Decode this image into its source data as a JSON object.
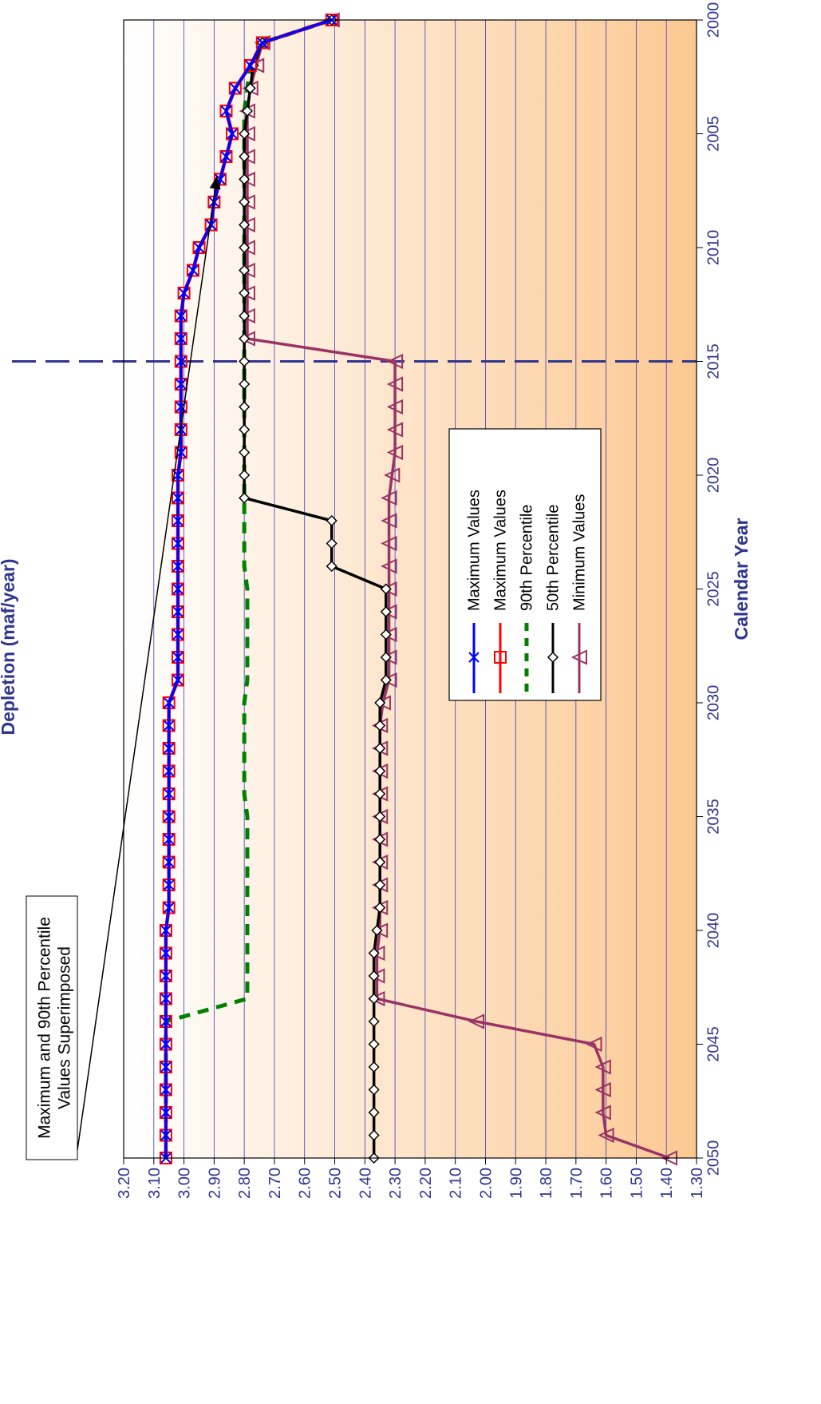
{
  "chart_data": {
    "type": "line",
    "orientation": "rotated-90-clockwise",
    "xlabel": "Calendar Year",
    "ylabel": "Depletion (maf/year)",
    "xlim": [
      2000,
      2050
    ],
    "ylim": [
      1.3,
      3.2
    ],
    "x_ticks": [
      2000,
      2005,
      2010,
      2015,
      2020,
      2025,
      2030,
      2035,
      2040,
      2045,
      2050
    ],
    "y_ticks": [
      1.3,
      1.4,
      1.5,
      1.6,
      1.7,
      1.8,
      1.9,
      2.0,
      2.1,
      2.2,
      2.3,
      2.4,
      2.5,
      2.6,
      2.7,
      2.8,
      2.9,
      3.0,
      3.1,
      3.2
    ],
    "grid": true,
    "legend_placement": "center",
    "reference_line": {
      "x": 2015,
      "style": "dashed",
      "color": "#2f3590"
    },
    "annotation": {
      "line1": "Maximum and 90th Percentile",
      "line2": "Values Superimposed",
      "points_to": {
        "x": 2007,
        "y": 2.88
      }
    },
    "series": [
      {
        "name": "Maximum Values",
        "color": "#0000ff",
        "marker": "x",
        "line": "solid",
        "x": [
          2000,
          2001,
          2002,
          2003,
          2004,
          2005,
          2006,
          2007,
          2008,
          2009,
          2010,
          2011,
          2012,
          2013,
          2014,
          2015,
          2016,
          2017,
          2018,
          2019,
          2020,
          2021,
          2022,
          2023,
          2024,
          2025,
          2026,
          2027,
          2028,
          2029,
          2030,
          2031,
          2032,
          2033,
          2034,
          2035,
          2036,
          2037,
          2038,
          2039,
          2040,
          2041,
          2042,
          2043,
          2044,
          2045,
          2046,
          2047,
          2048,
          2049,
          2050
        ],
        "y": [
          2.51,
          2.74,
          2.78,
          2.83,
          2.86,
          2.84,
          2.86,
          2.88,
          2.9,
          2.91,
          2.95,
          2.97,
          3.0,
          3.01,
          3.01,
          3.01,
          3.01,
          3.01,
          3.01,
          3.01,
          3.02,
          3.02,
          3.02,
          3.02,
          3.02,
          3.02,
          3.02,
          3.02,
          3.02,
          3.02,
          3.05,
          3.05,
          3.05,
          3.05,
          3.05,
          3.05,
          3.05,
          3.05,
          3.05,
          3.05,
          3.06,
          3.06,
          3.06,
          3.06,
          3.06,
          3.06,
          3.06,
          3.06,
          3.06,
          3.06,
          3.06
        ]
      },
      {
        "name": "Maximum Values",
        "color": "#ff0000",
        "marker": "square",
        "line": "solid",
        "x": [
          2000,
          2001,
          2002,
          2003,
          2004,
          2005,
          2006,
          2007,
          2008,
          2009,
          2010,
          2011,
          2012,
          2013,
          2014,
          2015,
          2016,
          2017,
          2018,
          2019,
          2020,
          2021,
          2022,
          2023,
          2024,
          2025,
          2026,
          2027,
          2028,
          2029,
          2030,
          2031,
          2032,
          2033,
          2034,
          2035,
          2036,
          2037,
          2038,
          2039,
          2040,
          2041,
          2042,
          2043,
          2044,
          2045,
          2046,
          2047,
          2048,
          2049,
          2050
        ],
        "y": [
          2.51,
          2.74,
          2.78,
          2.83,
          2.86,
          2.84,
          2.86,
          2.88,
          2.9,
          2.91,
          2.95,
          2.97,
          3.0,
          3.01,
          3.01,
          3.01,
          3.01,
          3.01,
          3.01,
          3.01,
          3.02,
          3.02,
          3.02,
          3.02,
          3.02,
          3.02,
          3.02,
          3.02,
          3.02,
          3.02,
          3.05,
          3.05,
          3.05,
          3.05,
          3.05,
          3.05,
          3.05,
          3.05,
          3.05,
          3.05,
          3.06,
          3.06,
          3.06,
          3.06,
          3.06,
          3.06,
          3.06,
          3.06,
          3.06,
          3.06,
          3.06
        ]
      },
      {
        "name": "90th Percentile",
        "color": "#008000",
        "marker": "none",
        "line": "dashed",
        "x": [
          2000,
          2001,
          2002,
          2003,
          2004,
          2005,
          2010,
          2015,
          2020,
          2024,
          2025,
          2029,
          2030,
          2034,
          2035,
          2040,
          2043,
          2044,
          2050
        ],
        "y": [
          2.51,
          2.74,
          2.78,
          2.79,
          2.8,
          2.8,
          2.8,
          2.8,
          2.8,
          2.8,
          2.79,
          2.79,
          2.8,
          2.8,
          2.79,
          2.79,
          2.79,
          3.06,
          3.06
        ]
      },
      {
        "name": "50th Percentile",
        "color": "#000000",
        "marker": "diamond",
        "line": "solid",
        "x": [
          2000,
          2001,
          2002,
          2003,
          2004,
          2005,
          2006,
          2007,
          2008,
          2009,
          2010,
          2011,
          2012,
          2013,
          2014,
          2015,
          2016,
          2017,
          2018,
          2019,
          2020,
          2021,
          2022,
          2023,
          2024,
          2025,
          2026,
          2027,
          2028,
          2029,
          2030,
          2031,
          2032,
          2033,
          2034,
          2035,
          2036,
          2037,
          2038,
          2039,
          2040,
          2041,
          2042,
          2043,
          2044,
          2045,
          2046,
          2047,
          2048,
          2049,
          2050
        ],
        "y": [
          2.51,
          2.74,
          2.77,
          2.78,
          2.79,
          2.8,
          2.8,
          2.8,
          2.8,
          2.8,
          2.8,
          2.8,
          2.8,
          2.8,
          2.8,
          2.8,
          2.8,
          2.8,
          2.8,
          2.8,
          2.8,
          2.8,
          2.51,
          2.51,
          2.51,
          2.33,
          2.33,
          2.33,
          2.33,
          2.33,
          2.35,
          2.35,
          2.35,
          2.35,
          2.35,
          2.35,
          2.35,
          2.35,
          2.35,
          2.35,
          2.36,
          2.37,
          2.37,
          2.37,
          2.37,
          2.37,
          2.37,
          2.37,
          2.37,
          2.37,
          2.37
        ]
      },
      {
        "name": "Minimum Values",
        "color": "#993366",
        "marker": "triangle",
        "line": "solid",
        "x": [
          2000,
          2001,
          2002,
          2003,
          2004,
          2005,
          2006,
          2007,
          2008,
          2009,
          2010,
          2011,
          2012,
          2013,
          2014,
          2015,
          2016,
          2017,
          2018,
          2019,
          2020,
          2021,
          2022,
          2023,
          2024,
          2025,
          2026,
          2027,
          2028,
          2029,
          2030,
          2031,
          2032,
          2033,
          2034,
          2035,
          2036,
          2037,
          2038,
          2039,
          2040,
          2041,
          2042,
          2043,
          2044,
          2045,
          2046,
          2047,
          2048,
          2049,
          2050
        ],
        "y": [
          2.51,
          2.74,
          2.76,
          2.78,
          2.79,
          2.79,
          2.79,
          2.79,
          2.79,
          2.79,
          2.79,
          2.79,
          2.79,
          2.79,
          2.79,
          2.3,
          2.3,
          2.3,
          2.3,
          2.3,
          2.31,
          2.32,
          2.32,
          2.32,
          2.32,
          2.32,
          2.32,
          2.32,
          2.32,
          2.32,
          2.34,
          2.35,
          2.35,
          2.35,
          2.35,
          2.35,
          2.35,
          2.35,
          2.35,
          2.35,
          2.35,
          2.36,
          2.36,
          2.36,
          2.03,
          1.64,
          1.61,
          1.61,
          1.61,
          1.6,
          1.39
        ]
      }
    ]
  }
}
